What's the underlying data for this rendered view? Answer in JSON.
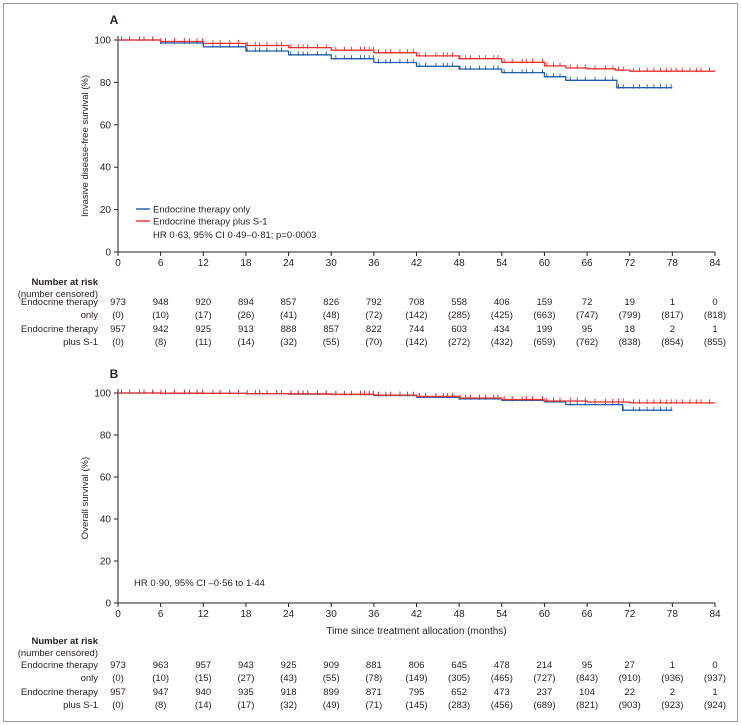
{
  "colors": {
    "endocrine_only": "#1f5fa8",
    "endocrine_plus_s1": "#e8312e",
    "axis": "#231f20",
    "frame": "#9a9a9a"
  },
  "risk_table_header": [
    "Number at risk",
    "(number censored)"
  ],
  "x_axis_label": "Time since treatment allocation (months)",
  "chart_data": [
    {
      "type": "line",
      "panel_label": "A",
      "ylabel": "Invasive disease-free survival (%)",
      "xlabel": "",
      "x_ticks": [
        0,
        6,
        12,
        18,
        24,
        30,
        36,
        42,
        48,
        54,
        60,
        66,
        72,
        78,
        84
      ],
      "y_ticks": [
        0,
        20,
        40,
        60,
        80,
        100
      ],
      "xlim": [
        0,
        84
      ],
      "ylim": [
        0,
        100
      ],
      "legend_position": "lower-left",
      "legend": [
        "Endocrine therapy only",
        "Endocrine therapy plus S-1"
      ],
      "annotation": "HR 0·63, 95% CI 0·49–0·81; p=0·0003",
      "series": [
        {
          "name": "Endocrine therapy only",
          "color": "#1f5fa8",
          "x": [
            0,
            6,
            12,
            18,
            24,
            30,
            36,
            42,
            48,
            54,
            60,
            63,
            66,
            68,
            70,
            70.2,
            78
          ],
          "y": [
            100,
            98.6,
            96.8,
            94.8,
            93.0,
            91.2,
            89.4,
            87.6,
            86.3,
            84.6,
            82.7,
            81.0,
            81.0,
            81.0,
            81.0,
            77.5,
            77.5
          ]
        },
        {
          "name": "Endocrine therapy plus S-1",
          "color": "#e8312e",
          "x": [
            0,
            6,
            12,
            18,
            24,
            30,
            36,
            42,
            48,
            54,
            60,
            63,
            66,
            70,
            72,
            78,
            84
          ],
          "y": [
            100,
            99.3,
            98.4,
            97.4,
            96.4,
            95.2,
            94.0,
            92.5,
            91.2,
            89.5,
            87.8,
            86.8,
            86.4,
            85.8,
            85.3,
            85.3,
            85.3
          ]
        }
      ],
      "risk_table": [
        {
          "label_lines": [
            "Endocrine therapy",
            "only"
          ],
          "at_risk": [
            "973",
            "948",
            "920",
            "894",
            "857",
            "826",
            "792",
            "708",
            "558",
            "406",
            "159",
            "72",
            "19",
            "1",
            "0"
          ],
          "censored": [
            "(0)",
            "(10)",
            "(17)",
            "(26)",
            "(41)",
            "(48)",
            "(72)",
            "(142)",
            "(285)",
            "(425)",
            "(663)",
            "(747)",
            "(799)",
            "(817)",
            "(818)"
          ]
        },
        {
          "label_lines": [
            "Endocrine therapy",
            "plus S-1"
          ],
          "at_risk": [
            "957",
            "942",
            "925",
            "913",
            "888",
            "857",
            "822",
            "744",
            "603",
            "434",
            "199",
            "95",
            "18",
            "2",
            "1"
          ],
          "censored": [
            "(0)",
            "(8)",
            "(11)",
            "(14)",
            "(32)",
            "(55)",
            "(70)",
            "(142)",
            "(272)",
            "(432)",
            "(659)",
            "(762)",
            "(838)",
            "(854)",
            "(855)"
          ]
        }
      ]
    },
    {
      "type": "line",
      "panel_label": "B",
      "ylabel": "Overall survival (%)",
      "xlabel": "Time since treatment allocation (months)",
      "x_ticks": [
        0,
        6,
        12,
        18,
        24,
        30,
        36,
        42,
        48,
        54,
        60,
        66,
        72,
        78,
        84
      ],
      "y_ticks": [
        0,
        20,
        40,
        60,
        80,
        100
      ],
      "xlim": [
        0,
        84
      ],
      "ylim": [
        0,
        100
      ],
      "annotation": "HR 0·90, 95% CI –0·56 to 1·44",
      "series": [
        {
          "name": "Endocrine therapy only",
          "color": "#1f5fa8",
          "x": [
            0,
            6,
            12,
            18,
            24,
            30,
            36,
            42,
            48,
            54,
            60,
            63,
            66,
            70,
            71,
            78
          ],
          "y": [
            100,
            99.9,
            99.8,
            99.7,
            99.5,
            99.3,
            98.8,
            98.0,
            97.2,
            96.5,
            95.8,
            94.5,
            94.5,
            94.5,
            91.8,
            91.8
          ]
        },
        {
          "name": "Endocrine therapy plus S-1",
          "color": "#e8312e",
          "x": [
            0,
            6,
            12,
            18,
            24,
            30,
            36,
            42,
            48,
            54,
            60,
            66,
            72,
            84
          ],
          "y": [
            100,
            99.9,
            99.8,
            99.7,
            99.6,
            99.4,
            99.0,
            98.4,
            97.6,
            96.9,
            96.2,
            95.7,
            95.3,
            95.3
          ]
        }
      ],
      "risk_table": [
        {
          "label_lines": [
            "Endocrine therapy",
            "only"
          ],
          "at_risk": [
            "973",
            "963",
            "957",
            "943",
            "925",
            "909",
            "881",
            "806",
            "645",
            "478",
            "214",
            "95",
            "27",
            "1",
            "0"
          ],
          "censored": [
            "(0)",
            "(10)",
            "(15)",
            "(27)",
            "(43)",
            "(55)",
            "(78)",
            "(149)",
            "(305)",
            "(465)",
            "(727)",
            "(843)",
            "(910)",
            "(936)",
            "(937)"
          ]
        },
        {
          "label_lines": [
            "Endocrine therapy",
            "plus S-1"
          ],
          "at_risk": [
            "957",
            "947",
            "940",
            "935",
            "918",
            "899",
            "871",
            "795",
            "652",
            "473",
            "237",
            "104",
            "22",
            "2",
            "1"
          ],
          "censored": [
            "(0)",
            "(8)",
            "(14)",
            "(17)",
            "(32)",
            "(49)",
            "(71)",
            "(145)",
            "(283)",
            "(456)",
            "(689)",
            "(821)",
            "(903)",
            "(923)",
            "(924)"
          ]
        }
      ]
    }
  ]
}
